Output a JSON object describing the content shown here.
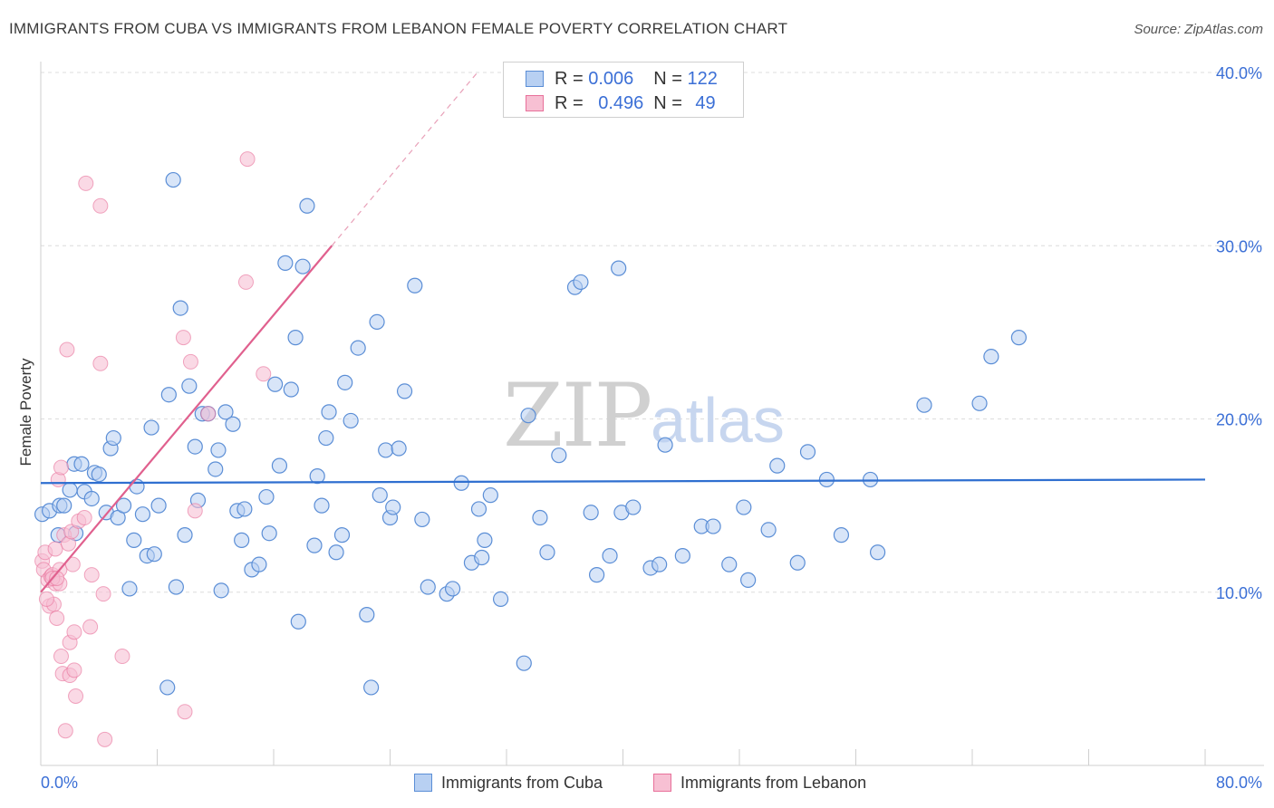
{
  "header": {
    "title": "IMMIGRANTS FROM CUBA VS IMMIGRANTS FROM LEBANON FEMALE POVERTY CORRELATION CHART",
    "source": "Source: ZipAtlas.com"
  },
  "legend": {
    "cuba": {
      "r_label": "R =",
      "r_value": "0.006",
      "n_label": "N =",
      "n_value": "122"
    },
    "lebanon": {
      "r_label": "R =",
      "r_value": "0.496",
      "n_label": "N =",
      "n_value": "49"
    }
  },
  "bottom_legend": {
    "cuba": "Immigrants from Cuba",
    "lebanon": "Immigrants from Lebanon"
  },
  "colors": {
    "cuba": "#5b8ed6",
    "cuba_fill": "#b8d0f2",
    "lebanon": "#e8709a",
    "lebanon_fill": "#f7c0d3",
    "axis_text": "#3b6fd6"
  },
  "chart_data": {
    "type": "scatter",
    "title": "IMMIGRANTS FROM CUBA VS IMMIGRANTS FROM LEBANON FEMALE POVERTY CORRELATION CHART",
    "xlabel": "",
    "ylabel": "Female Poverty",
    "xlim": [
      0,
      80
    ],
    "ylim": [
      0,
      40
    ],
    "x_tick_labels": [
      "0.0%",
      "80.0%"
    ],
    "y_ticks": [
      10,
      20,
      30,
      40
    ],
    "y_tick_labels": [
      "10.0%",
      "20.0%",
      "30.0%",
      "40.0%"
    ],
    "watermark": "ZIPatlas",
    "series": [
      {
        "name": "Immigrants from Cuba",
        "trend": {
          "x": [
            0,
            80
          ],
          "y": [
            16.3,
            16.5
          ]
        },
        "points": [
          [
            0.1,
            14.5
          ],
          [
            0.6,
            14.7
          ],
          [
            1.2,
            13.3
          ],
          [
            1.3,
            15.0
          ],
          [
            1.6,
            15.0
          ],
          [
            2.0,
            15.9
          ],
          [
            2.3,
            17.4
          ],
          [
            2.4,
            13.4
          ],
          [
            2.8,
            17.4
          ],
          [
            3.0,
            15.8
          ],
          [
            3.5,
            15.4
          ],
          [
            3.7,
            16.9
          ],
          [
            4.0,
            16.8
          ],
          [
            4.5,
            14.6
          ],
          [
            4.8,
            18.3
          ],
          [
            5.0,
            18.9
          ],
          [
            5.3,
            14.3
          ],
          [
            5.7,
            15.0
          ],
          [
            6.1,
            10.2
          ],
          [
            6.4,
            13.0
          ],
          [
            6.6,
            16.1
          ],
          [
            7.0,
            14.5
          ],
          [
            7.3,
            12.1
          ],
          [
            7.6,
            19.5
          ],
          [
            7.8,
            12.2
          ],
          [
            8.1,
            15.0
          ],
          [
            8.7,
            4.5
          ],
          [
            8.8,
            21.4
          ],
          [
            9.1,
            33.8
          ],
          [
            9.3,
            10.3
          ],
          [
            9.6,
            26.4
          ],
          [
            9.9,
            13.3
          ],
          [
            10.2,
            21.9
          ],
          [
            10.6,
            18.4
          ],
          [
            10.8,
            15.3
          ],
          [
            11.1,
            20.3
          ],
          [
            11.5,
            20.3
          ],
          [
            12.0,
            17.1
          ],
          [
            12.2,
            18.2
          ],
          [
            12.4,
            10.1
          ],
          [
            12.7,
            20.4
          ],
          [
            13.2,
            19.7
          ],
          [
            13.5,
            14.7
          ],
          [
            13.8,
            13.0
          ],
          [
            14.0,
            14.8
          ],
          [
            14.5,
            11.3
          ],
          [
            15.0,
            11.6
          ],
          [
            15.5,
            15.5
          ],
          [
            15.7,
            13.4
          ],
          [
            16.1,
            22.0
          ],
          [
            16.4,
            17.3
          ],
          [
            16.8,
            29.0
          ],
          [
            17.2,
            21.7
          ],
          [
            17.5,
            24.7
          ],
          [
            17.7,
            8.3
          ],
          [
            18.0,
            28.8
          ],
          [
            18.3,
            32.3
          ],
          [
            18.8,
            12.7
          ],
          [
            19.0,
            16.7
          ],
          [
            19.3,
            15.0
          ],
          [
            19.6,
            18.9
          ],
          [
            19.8,
            20.4
          ],
          [
            20.3,
            12.3
          ],
          [
            20.7,
            13.3
          ],
          [
            20.9,
            22.1
          ],
          [
            21.3,
            19.9
          ],
          [
            21.8,
            24.1
          ],
          [
            22.4,
            8.7
          ],
          [
            22.7,
            4.5
          ],
          [
            23.1,
            25.6
          ],
          [
            23.3,
            15.6
          ],
          [
            23.7,
            18.2
          ],
          [
            24.0,
            14.3
          ],
          [
            24.2,
            14.9
          ],
          [
            24.6,
            18.3
          ],
          [
            25.0,
            21.6
          ],
          [
            25.7,
            27.7
          ],
          [
            26.2,
            14.2
          ],
          [
            26.6,
            10.3
          ],
          [
            27.9,
            9.9
          ],
          [
            28.3,
            10.2
          ],
          [
            28.9,
            16.3
          ],
          [
            29.6,
            11.7
          ],
          [
            30.1,
            14.8
          ],
          [
            30.3,
            12.0
          ],
          [
            30.5,
            13.0
          ],
          [
            30.9,
            15.6
          ],
          [
            31.6,
            9.6
          ],
          [
            33.2,
            5.9
          ],
          [
            33.5,
            20.2
          ],
          [
            34.3,
            14.3
          ],
          [
            34.8,
            12.3
          ],
          [
            35.6,
            17.9
          ],
          [
            36.7,
            27.6
          ],
          [
            37.1,
            27.9
          ],
          [
            37.8,
            14.6
          ],
          [
            38.2,
            11.0
          ],
          [
            39.1,
            12.1
          ],
          [
            39.7,
            28.7
          ],
          [
            39.9,
            14.6
          ],
          [
            40.7,
            14.9
          ],
          [
            41.9,
            11.4
          ],
          [
            42.5,
            11.6
          ],
          [
            42.9,
            18.5
          ],
          [
            44.1,
            12.1
          ],
          [
            45.4,
            13.8
          ],
          [
            46.2,
            13.8
          ],
          [
            47.3,
            11.6
          ],
          [
            48.3,
            14.9
          ],
          [
            48.6,
            10.7
          ],
          [
            50.0,
            13.6
          ],
          [
            50.6,
            17.3
          ],
          [
            52.0,
            11.7
          ],
          [
            52.7,
            18.1
          ],
          [
            54.0,
            16.5
          ],
          [
            55.0,
            13.3
          ],
          [
            57.5,
            12.3
          ],
          [
            60.7,
            20.8
          ],
          [
            64.5,
            20.9
          ],
          [
            65.3,
            23.6
          ],
          [
            67.2,
            24.7
          ],
          [
            57.0,
            16.5
          ]
        ]
      },
      {
        "name": "Immigrants from Lebanon",
        "trend": {
          "x": [
            0,
            20
          ],
          "y": [
            10.0,
            30.0
          ]
        },
        "trend_dashed": {
          "x": [
            20,
            30
          ],
          "y": [
            30.0,
            40.0
          ]
        },
        "points": [
          [
            0.1,
            11.8
          ],
          [
            0.2,
            11.3
          ],
          [
            0.3,
            12.3
          ],
          [
            0.5,
            10.7
          ],
          [
            0.6,
            9.2
          ],
          [
            0.7,
            10.9
          ],
          [
            0.8,
            11.0
          ],
          [
            0.9,
            9.3
          ],
          [
            1.0,
            12.5
          ],
          [
            1.0,
            10.5
          ],
          [
            1.1,
            8.5
          ],
          [
            1.2,
            16.5
          ],
          [
            1.3,
            11.3
          ],
          [
            1.4,
            6.3
          ],
          [
            1.4,
            17.2
          ],
          [
            1.5,
            5.3
          ],
          [
            1.6,
            13.3
          ],
          [
            1.7,
            2.0
          ],
          [
            1.8,
            24.0
          ],
          [
            1.9,
            12.8
          ],
          [
            2.0,
            5.2
          ],
          [
            2.0,
            7.1
          ],
          [
            2.1,
            13.5
          ],
          [
            2.2,
            11.6
          ],
          [
            2.3,
            7.7
          ],
          [
            2.3,
            5.5
          ],
          [
            2.4,
            4.0
          ],
          [
            2.6,
            14.1
          ],
          [
            3.0,
            14.3
          ],
          [
            3.1,
            33.6
          ],
          [
            3.4,
            8.0
          ],
          [
            3.5,
            11.0
          ],
          [
            4.1,
            32.3
          ],
          [
            4.1,
            23.2
          ],
          [
            4.3,
            9.9
          ],
          [
            4.4,
            1.5
          ],
          [
            5.6,
            6.3
          ],
          [
            9.8,
            24.7
          ],
          [
            9.9,
            3.1
          ],
          [
            10.3,
            23.3
          ],
          [
            10.6,
            14.7
          ],
          [
            11.5,
            20.3
          ],
          [
            14.1,
            27.9
          ],
          [
            14.2,
            35.0
          ],
          [
            15.3,
            22.6
          ],
          [
            0.4,
            9.6
          ],
          [
            1.3,
            10.5
          ],
          [
            0.8,
            10.8
          ],
          [
            1.1,
            10.8
          ]
        ]
      }
    ]
  }
}
